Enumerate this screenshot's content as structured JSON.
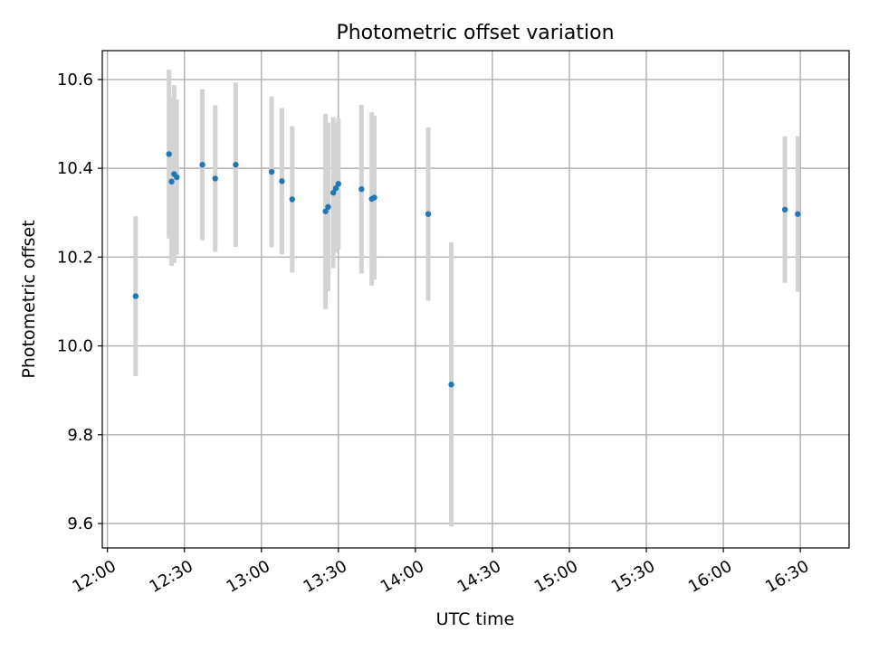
{
  "chart_data": {
    "type": "scatter",
    "title": "Photometric offset variation",
    "xlabel": "UTC time",
    "ylabel": "Photometric offset",
    "x_axis": "time",
    "xlim": [
      "11:58",
      "16:49"
    ],
    "ylim": [
      9.545,
      10.665
    ],
    "x_ticks": [
      "12:00",
      "12:30",
      "13:00",
      "13:30",
      "14:00",
      "14:30",
      "15:00",
      "15:30",
      "16:00",
      "16:30"
    ],
    "y_ticks": [
      9.6,
      9.8,
      10.0,
      10.2,
      10.4,
      10.6
    ],
    "y_tick_labels": [
      "9.6",
      "9.8",
      "10.0",
      "10.2",
      "10.4",
      "10.6"
    ],
    "grid": true,
    "colors": {
      "point": "#1f77b4",
      "errorbar": "#d3d3d3",
      "grid": "#b0b0b0"
    },
    "series": [
      {
        "points": [
          {
            "time": "12:11",
            "y": 10.112,
            "yerr": 0.18
          },
          {
            "time": "12:24",
            "y": 10.432,
            "yerr": 0.19
          },
          {
            "time": "12:25",
            "y": 10.37,
            "yerr": 0.19
          },
          {
            "time": "12:26",
            "y": 10.387,
            "yerr": 0.2
          },
          {
            "time": "12:27",
            "y": 10.38,
            "yerr": 0.175
          },
          {
            "time": "12:37",
            "y": 10.408,
            "yerr": 0.17
          },
          {
            "time": "12:42",
            "y": 10.377,
            "yerr": 0.165
          },
          {
            "time": "12:50",
            "y": 10.408,
            "yerr": 0.185
          },
          {
            "time": "13:04",
            "y": 10.392,
            "yerr": 0.17
          },
          {
            "time": "13:08",
            "y": 10.371,
            "yerr": 0.165
          },
          {
            "time": "13:12",
            "y": 10.33,
            "yerr": 0.165
          },
          {
            "time": "13:25",
            "y": 10.303,
            "yerr": 0.22
          },
          {
            "time": "13:26",
            "y": 10.313,
            "yerr": 0.19
          },
          {
            "time": "13:28",
            "y": 10.345,
            "yerr": 0.17
          },
          {
            "time": "13:29",
            "y": 10.355,
            "yerr": 0.145
          },
          {
            "time": "13:30",
            "y": 10.365,
            "yerr": 0.148
          },
          {
            "time": "13:39",
            "y": 10.353,
            "yerr": 0.19
          },
          {
            "time": "13:43",
            "y": 10.331,
            "yerr": 0.195
          },
          {
            "time": "13:44",
            "y": 10.334,
            "yerr": 0.185
          },
          {
            "time": "14:05",
            "y": 10.297,
            "yerr": 0.195
          },
          {
            "time": "14:14",
            "y": 9.913,
            "yerr": 0.32
          },
          {
            "time": "16:24",
            "y": 10.307,
            "yerr": 0.165
          },
          {
            "time": "16:29",
            "y": 10.297,
            "yerr": 0.175
          }
        ]
      }
    ]
  }
}
